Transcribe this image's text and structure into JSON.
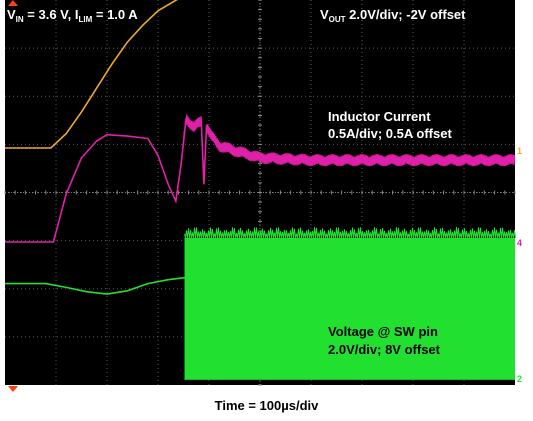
{
  "chart_data": {
    "type": "line",
    "title": "",
    "xlabel": "Time = 100µs/div",
    "ylabel": "",
    "annotations": {
      "vin_prefix": "V",
      "vin_sub": "IN",
      "vin_value": " = 3.6 V, I",
      "ilim_sub": "LIM",
      "ilim_value": " = 1.0 A",
      "vout_prefix": "V",
      "vout_sub": "OUT",
      "vout_rest": " 2.0V/div; -2V offset",
      "inductor_line1": "Inductor Current",
      "inductor_line2": "0.5A/div; 0.5A offset",
      "sw_line1": "Voltage @ SW pin",
      "sw_line2": "2.0V/div; 8V offset"
    },
    "grid": {
      "x_divisions": 10,
      "y_divisions": 8,
      "unit": "div"
    },
    "channel_markers": [
      "1",
      "4",
      "2"
    ],
    "series": [
      {
        "name": "Vout",
        "color": "#f0a830",
        "scale": "2.0V/div",
        "offset": "-2V",
        "x": [
          0,
          0.9,
          1.2,
          1.5,
          1.8,
          2.1,
          2.4,
          2.7,
          3.0,
          3.4,
          3.8,
          4.2,
          5.0,
          6.0,
          7.0,
          8.0,
          9.0,
          10.0
        ],
        "y": [
          0.0,
          0.0,
          0.3,
          0.75,
          1.25,
          1.75,
          2.2,
          2.55,
          2.85,
          3.1,
          3.28,
          3.38,
          3.48,
          3.52,
          3.54,
          3.55,
          3.56,
          3.56
        ]
      },
      {
        "name": "Inductor Current",
        "color": "#e020a8",
        "scale": "0.5A/div",
        "offset": "0.5A",
        "x": [
          0,
          0.95,
          1.2,
          1.5,
          1.8,
          2.0,
          2.4,
          2.8,
          3.0,
          3.2,
          3.35,
          3.45,
          3.55,
          3.7,
          3.85,
          3.9,
          3.95,
          4.05,
          4.2,
          4.5,
          5.0,
          6.0,
          7.0,
          8.0,
          9.0,
          10.0
        ],
        "y": [
          0.0,
          0.0,
          1.0,
          1.75,
          2.1,
          2.23,
          2.2,
          2.15,
          1.8,
          1.2,
          0.85,
          1.6,
          2.55,
          2.4,
          2.5,
          1.2,
          2.4,
          2.2,
          2.0,
          1.9,
          1.75,
          1.7,
          1.7,
          1.7,
          1.7,
          1.7
        ],
        "ripple": 0.25,
        "ripple_start_x": 3.5
      },
      {
        "name": "Voltage @ SW pin",
        "color": "#22e030",
        "scale": "2.0V/div",
        "offset": "8V",
        "x": [
          0,
          0.8,
          1.2,
          1.6,
          2.0,
          2.4,
          2.8,
          3.2,
          3.5,
          3.52,
          5.0,
          7.0,
          9.0,
          10.0
        ],
        "y": [
          0.3,
          0.3,
          0.22,
          0.13,
          0.08,
          0.15,
          0.3,
          0.38,
          0.42,
          0.42,
          0.42,
          0.42,
          0.42,
          0.42
        ],
        "switching_start_x": 3.52,
        "switching_low": -1.7,
        "switching_high": 1.25
      }
    ]
  }
}
